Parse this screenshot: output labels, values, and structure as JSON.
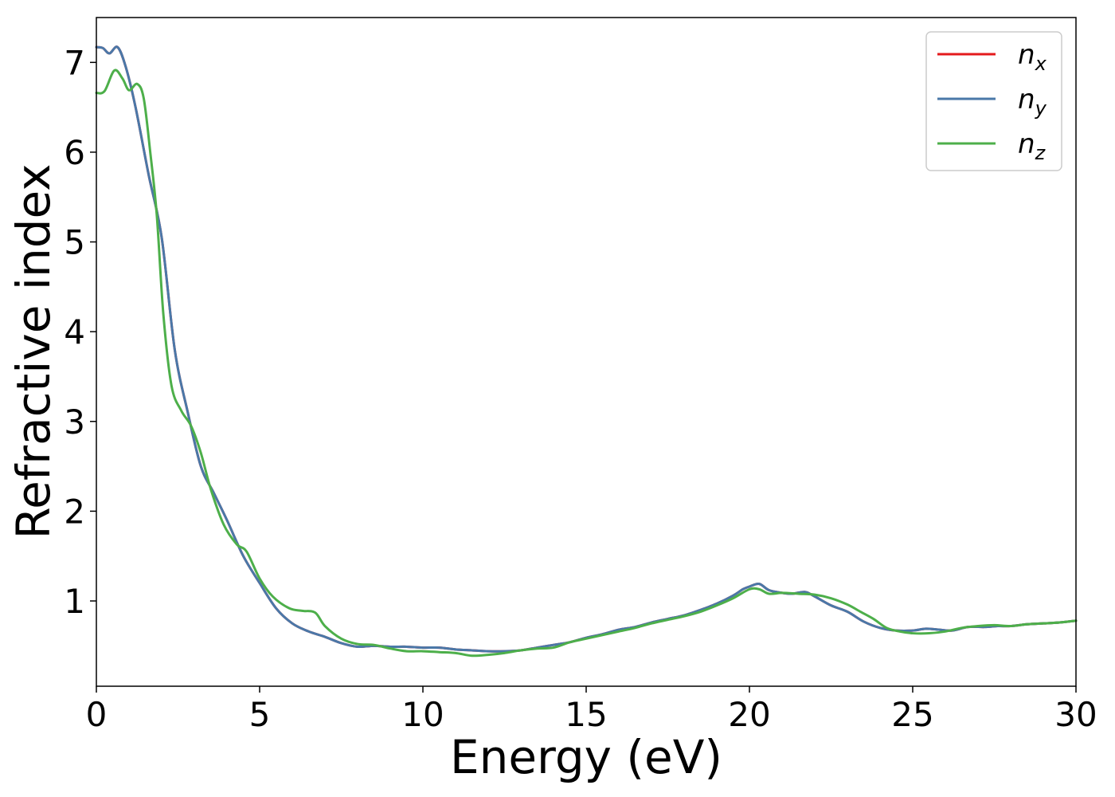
{
  "chart_data": {
    "type": "line",
    "title": "",
    "xlabel": "Energy (eV)",
    "ylabel": "Refractive index",
    "xlim": [
      0,
      30
    ],
    "ylim": [
      0.05,
      7.5
    ],
    "xticks": [
      0,
      5,
      10,
      15,
      20,
      25,
      30
    ],
    "yticks": [
      1,
      2,
      3,
      4,
      5,
      6,
      7
    ],
    "grid": false,
    "legend_position": "top-right",
    "series": [
      {
        "name": "n_x",
        "legend_base": "n",
        "legend_sub": "x",
        "color": "#e41a1c",
        "points": [
          [
            0,
            7.17
          ],
          [
            0.2,
            7.16
          ],
          [
            0.4,
            7.1
          ],
          [
            0.65,
            7.17
          ],
          [
            0.9,
            6.95
          ],
          [
            1.2,
            6.5
          ],
          [
            1.6,
            5.75
          ],
          [
            2.0,
            5.05
          ],
          [
            2.4,
            3.8
          ],
          [
            2.8,
            3.1
          ],
          [
            3.2,
            2.5
          ],
          [
            3.6,
            2.2
          ],
          [
            4.0,
            1.9
          ],
          [
            4.5,
            1.5
          ],
          [
            5.0,
            1.2
          ],
          [
            5.5,
            0.92
          ],
          [
            6.0,
            0.75
          ],
          [
            6.5,
            0.66
          ],
          [
            7.0,
            0.6
          ],
          [
            7.5,
            0.53
          ],
          [
            8.0,
            0.49
          ],
          [
            8.5,
            0.5
          ],
          [
            9.0,
            0.49
          ],
          [
            9.5,
            0.49
          ],
          [
            10.0,
            0.48
          ],
          [
            10.5,
            0.48
          ],
          [
            11.0,
            0.46
          ],
          [
            11.5,
            0.45
          ],
          [
            12.0,
            0.44
          ],
          [
            12.5,
            0.44
          ],
          [
            13.0,
            0.45
          ],
          [
            13.5,
            0.48
          ],
          [
            14.0,
            0.51
          ],
          [
            14.5,
            0.54
          ],
          [
            15.0,
            0.59
          ],
          [
            15.5,
            0.63
          ],
          [
            16.0,
            0.68
          ],
          [
            16.5,
            0.71
          ],
          [
            17.0,
            0.76
          ],
          [
            17.5,
            0.8
          ],
          [
            18.0,
            0.84
          ],
          [
            18.5,
            0.9
          ],
          [
            19.0,
            0.97
          ],
          [
            19.5,
            1.06
          ],
          [
            19.8,
            1.13
          ],
          [
            20.0,
            1.16
          ],
          [
            20.3,
            1.19
          ],
          [
            20.6,
            1.12
          ],
          [
            21.0,
            1.09
          ],
          [
            21.3,
            1.08
          ],
          [
            21.7,
            1.1
          ],
          [
            22.0,
            1.05
          ],
          [
            22.5,
            0.95
          ],
          [
            23.0,
            0.88
          ],
          [
            23.5,
            0.77
          ],
          [
            24.0,
            0.7
          ],
          [
            24.5,
            0.67
          ],
          [
            25.0,
            0.67
          ],
          [
            25.4,
            0.69
          ],
          [
            25.8,
            0.68
          ],
          [
            26.2,
            0.67
          ],
          [
            26.7,
            0.71
          ],
          [
            27.2,
            0.71
          ],
          [
            27.6,
            0.72
          ],
          [
            28.0,
            0.72
          ],
          [
            28.5,
            0.74
          ],
          [
            29.0,
            0.75
          ],
          [
            29.5,
            0.76
          ],
          [
            30.0,
            0.78
          ]
        ]
      },
      {
        "name": "n_y",
        "legend_base": "n",
        "legend_sub": "y",
        "color": "#4a78a8",
        "points": [
          [
            0,
            7.17
          ],
          [
            0.2,
            7.16
          ],
          [
            0.4,
            7.1
          ],
          [
            0.65,
            7.17
          ],
          [
            0.9,
            6.95
          ],
          [
            1.2,
            6.5
          ],
          [
            1.6,
            5.75
          ],
          [
            2.0,
            5.05
          ],
          [
            2.4,
            3.8
          ],
          [
            2.8,
            3.1
          ],
          [
            3.2,
            2.5
          ],
          [
            3.6,
            2.2
          ],
          [
            4.0,
            1.9
          ],
          [
            4.5,
            1.5
          ],
          [
            5.0,
            1.2
          ],
          [
            5.5,
            0.92
          ],
          [
            6.0,
            0.75
          ],
          [
            6.5,
            0.66
          ],
          [
            7.0,
            0.6
          ],
          [
            7.5,
            0.53
          ],
          [
            8.0,
            0.49
          ],
          [
            8.5,
            0.5
          ],
          [
            9.0,
            0.49
          ],
          [
            9.5,
            0.49
          ],
          [
            10.0,
            0.48
          ],
          [
            10.5,
            0.48
          ],
          [
            11.0,
            0.46
          ],
          [
            11.5,
            0.45
          ],
          [
            12.0,
            0.44
          ],
          [
            12.5,
            0.44
          ],
          [
            13.0,
            0.45
          ],
          [
            13.5,
            0.48
          ],
          [
            14.0,
            0.51
          ],
          [
            14.5,
            0.54
          ],
          [
            15.0,
            0.59
          ],
          [
            15.5,
            0.63
          ],
          [
            16.0,
            0.68
          ],
          [
            16.5,
            0.71
          ],
          [
            17.0,
            0.76
          ],
          [
            17.5,
            0.8
          ],
          [
            18.0,
            0.84
          ],
          [
            18.5,
            0.9
          ],
          [
            19.0,
            0.97
          ],
          [
            19.5,
            1.06
          ],
          [
            19.8,
            1.13
          ],
          [
            20.0,
            1.16
          ],
          [
            20.3,
            1.19
          ],
          [
            20.6,
            1.12
          ],
          [
            21.0,
            1.09
          ],
          [
            21.3,
            1.08
          ],
          [
            21.7,
            1.1
          ],
          [
            22.0,
            1.05
          ],
          [
            22.5,
            0.95
          ],
          [
            23.0,
            0.88
          ],
          [
            23.5,
            0.77
          ],
          [
            24.0,
            0.7
          ],
          [
            24.5,
            0.67
          ],
          [
            25.0,
            0.67
          ],
          [
            25.4,
            0.69
          ],
          [
            25.8,
            0.68
          ],
          [
            26.2,
            0.67
          ],
          [
            26.7,
            0.71
          ],
          [
            27.2,
            0.71
          ],
          [
            27.6,
            0.72
          ],
          [
            28.0,
            0.72
          ],
          [
            28.5,
            0.74
          ],
          [
            29.0,
            0.75
          ],
          [
            29.5,
            0.76
          ],
          [
            30.0,
            0.78
          ]
        ]
      },
      {
        "name": "n_z",
        "legend_base": "n",
        "legend_sub": "z",
        "color": "#4daf4a",
        "points": [
          [
            0,
            6.66
          ],
          [
            0.25,
            6.68
          ],
          [
            0.55,
            6.91
          ],
          [
            0.8,
            6.82
          ],
          [
            1.0,
            6.69
          ],
          [
            1.25,
            6.76
          ],
          [
            1.45,
            6.6
          ],
          [
            1.65,
            6.0
          ],
          [
            1.85,
            5.3
          ],
          [
            2.05,
            4.2
          ],
          [
            2.3,
            3.4
          ],
          [
            2.6,
            3.12
          ],
          [
            2.9,
            2.95
          ],
          [
            3.2,
            2.65
          ],
          [
            3.5,
            2.25
          ],
          [
            3.9,
            1.85
          ],
          [
            4.3,
            1.63
          ],
          [
            4.6,
            1.55
          ],
          [
            5.0,
            1.25
          ],
          [
            5.4,
            1.05
          ],
          [
            5.9,
            0.92
          ],
          [
            6.3,
            0.89
          ],
          [
            6.7,
            0.87
          ],
          [
            7.0,
            0.72
          ],
          [
            7.5,
            0.58
          ],
          [
            8.0,
            0.52
          ],
          [
            8.5,
            0.51
          ],
          [
            9.0,
            0.47
          ],
          [
            9.5,
            0.44
          ],
          [
            10.0,
            0.44
          ],
          [
            10.5,
            0.43
          ],
          [
            11.0,
            0.42
          ],
          [
            11.5,
            0.39
          ],
          [
            12.0,
            0.4
          ],
          [
            12.5,
            0.42
          ],
          [
            13.0,
            0.45
          ],
          [
            13.5,
            0.47
          ],
          [
            14.0,
            0.48
          ],
          [
            14.5,
            0.54
          ],
          [
            15.0,
            0.58
          ],
          [
            15.5,
            0.62
          ],
          [
            16.0,
            0.66
          ],
          [
            16.5,
            0.7
          ],
          [
            17.0,
            0.75
          ],
          [
            17.5,
            0.79
          ],
          [
            18.0,
            0.83
          ],
          [
            18.5,
            0.88
          ],
          [
            19.0,
            0.95
          ],
          [
            19.5,
            1.03
          ],
          [
            20.0,
            1.13
          ],
          [
            20.3,
            1.13
          ],
          [
            20.6,
            1.08
          ],
          [
            21.0,
            1.09
          ],
          [
            21.5,
            1.08
          ],
          [
            22.0,
            1.07
          ],
          [
            22.5,
            1.03
          ],
          [
            23.0,
            0.96
          ],
          [
            23.4,
            0.88
          ],
          [
            23.8,
            0.8
          ],
          [
            24.2,
            0.7
          ],
          [
            24.6,
            0.66
          ],
          [
            25.0,
            0.64
          ],
          [
            25.5,
            0.64
          ],
          [
            26.0,
            0.66
          ],
          [
            26.5,
            0.7
          ],
          [
            27.0,
            0.72
          ],
          [
            27.5,
            0.73
          ],
          [
            28.0,
            0.72
          ],
          [
            28.5,
            0.74
          ],
          [
            29.0,
            0.75
          ],
          [
            29.5,
            0.76
          ],
          [
            30.0,
            0.78
          ]
        ]
      }
    ]
  }
}
